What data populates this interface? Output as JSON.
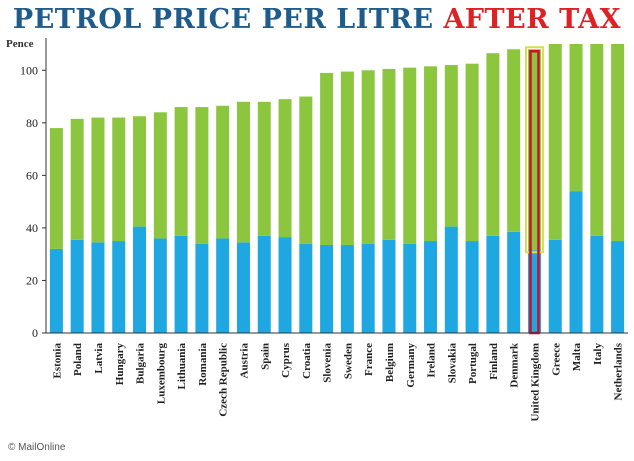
{
  "title_part1": "PETROL PRICE PER LITRE",
  "title_part2": "AFTER TAX",
  "credit": "© MailOnline",
  "colors": {
    "tax": "#8cc63f",
    "price": "#1ea7e1",
    "highlight": "#c8102e",
    "title_blue": "#1f5c8b",
    "title_red": "#e02027"
  },
  "chart_data": {
    "type": "bar",
    "stacked": true,
    "title": "PETROL PRICE PER LITRE AFTER TAX",
    "ylabel": "Pence",
    "ylim": [
      0,
      110
    ],
    "yticks": [
      0,
      20,
      40,
      60,
      80,
      100
    ],
    "grid": false,
    "legend": "none",
    "highlight_category": "United Kingdom",
    "categories": [
      "Estonia",
      "Poland",
      "Latvia",
      "Hungary",
      "Bulgaria",
      "Luxembourg",
      "Lithuania",
      "Romania",
      "Czech Republic",
      "Austria",
      "Spain",
      "Cyprus",
      "Croatia",
      "Slovenia",
      "Sweden",
      "France",
      "Belgium",
      "Germany",
      "Ireland",
      "Slovakia",
      "Portugal",
      "Finland",
      "Denmark",
      "United Kingdom",
      "Greece",
      "Malta",
      "Italy",
      "Netherlands"
    ],
    "series": [
      {
        "color": "#1ea7e1",
        "values": [
          32,
          35.5,
          34.5,
          35,
          40.5,
          36,
          37,
          34,
          36,
          34.5,
          37,
          36.5,
          34,
          33.5,
          33.5,
          34,
          35.5,
          34,
          35,
          40.5,
          35,
          37,
          38.5,
          31.5,
          35.5,
          54,
          37,
          35
        ]
      },
      {
        "color": "#8cc63f",
        "values": [
          46,
          46,
          47.5,
          47,
          42,
          48,
          49,
          52,
          50.5,
          53.5,
          51,
          52.5,
          56,
          65.5,
          66,
          66,
          65,
          67,
          66.5,
          61.5,
          67.5,
          69.5,
          69.5,
          76.5,
          74.5,
          56,
          73,
          75
        ]
      }
    ]
  }
}
